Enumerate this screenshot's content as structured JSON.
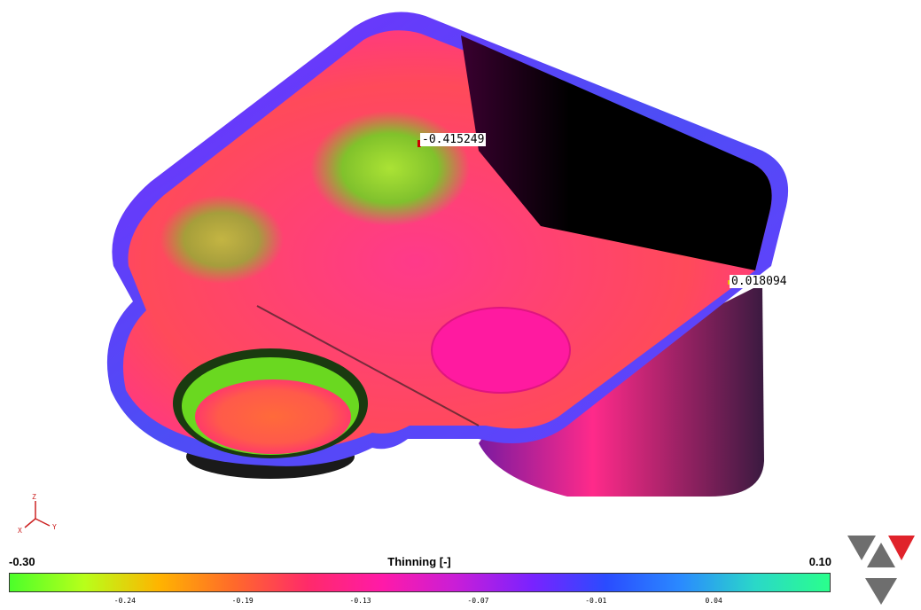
{
  "probes": {
    "min_value": "-0.415249",
    "max_value": "0.018094"
  },
  "legend": {
    "min_label": "-0.30",
    "max_label": "0.10",
    "title": "Thinning [-]",
    "ticks": [
      "-0.24",
      "-0.19",
      "-0.13",
      "-0.07",
      "-0.01",
      "0.04"
    ],
    "gradient_stops": [
      "#4cff2a",
      "#b8ff1a",
      "#ffb400",
      "#ff6a2a",
      "#ff2a6a",
      "#ff1aa8",
      "#c81ed8",
      "#7a22ff",
      "#2a4cff",
      "#2a8aff",
      "#2ad8c8",
      "#2aff8c"
    ]
  },
  "axis_triad": {
    "z": "Z",
    "x": "X",
    "y": "Y"
  },
  "colors": {
    "rim": "#5a3cf0",
    "logo_grey": "#6e6e6e",
    "logo_red": "#e0232b"
  }
}
